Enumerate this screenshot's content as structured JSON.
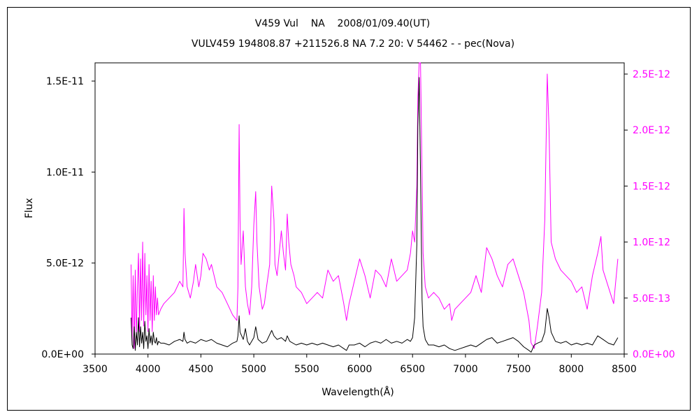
{
  "colors": {
    "primary_series": "#000000",
    "secondary_series": "#ff00ff",
    "frame": "#000000",
    "background": "#ffffff"
  },
  "chart_data": {
    "type": "line",
    "title": "V459 Vul    NA    2008/01/09.40(UT)",
    "subtitle": "VULV459 194808.87 +211526.8 NA 7.2 20: V 54462 - - pec(Nova)",
    "xlabel": "Wavelength(Å)",
    "ylabel": "Flux",
    "y2label": "",
    "xlim": [
      3500,
      8500
    ],
    "ylim": [
      0,
      1.6e-11
    ],
    "y2lim": [
      0,
      2.6e-12
    ],
    "x_ticks": [
      "3500",
      "4000",
      "4500",
      "5000",
      "5500",
      "6000",
      "6500",
      "7000",
      "7500",
      "8000",
      "8500"
    ],
    "y_ticks": [
      "0.0E+00",
      "5.0E-12",
      "1.0E-11",
      "1.5E-11"
    ],
    "y_tick_values": [
      0,
      5e-12,
      1e-11,
      1.5e-11
    ],
    "y2_ticks": [
      "0.0E+00",
      "5.0E-13",
      "1.0E-12",
      "1.5E-12",
      "2.0E-12",
      "2.5E-12"
    ],
    "y2_tick_values": [
      0,
      5e-13,
      1e-12,
      1.5e-12,
      2e-12,
      2.5e-12
    ],
    "grid": false,
    "series": [
      {
        "axis": "left",
        "color": "#000000",
        "x": [
          3840,
          3850,
          3860,
          3870,
          3880,
          3890,
          3900,
          3910,
          3920,
          3930,
          3940,
          3950,
          3960,
          3970,
          3980,
          3990,
          4000,
          4010,
          4020,
          4030,
          4040,
          4050,
          4060,
          4070,
          4080,
          4090,
          4100,
          4120,
          4150,
          4200,
          4250,
          4300,
          4330,
          4340,
          4350,
          4370,
          4400,
          4450,
          4500,
          4550,
          4600,
          4650,
          4700,
          4750,
          4800,
          4840,
          4850,
          4861,
          4870,
          4900,
          4921,
          4940,
          4960,
          5000,
          5018,
          5040,
          5080,
          5120,
          5169,
          5190,
          5220,
          5260,
          5300,
          5316,
          5340,
          5400,
          5450,
          5500,
          5550,
          5600,
          5650,
          5700,
          5750,
          5800,
          5850,
          5876,
          5900,
          5950,
          6000,
          6050,
          6100,
          6150,
          6200,
          6250,
          6300,
          6350,
          6400,
          6450,
          6480,
          6500,
          6520,
          6540,
          6550,
          6563,
          6575,
          6590,
          6600,
          6620,
          6650,
          6700,
          6750,
          6800,
          6850,
          6900,
          6950,
          7000,
          7050,
          7100,
          7150,
          7200,
          7250,
          7300,
          7350,
          7400,
          7450,
          7500,
          7550,
          7600,
          7620,
          7650,
          7680,
          7720,
          7750,
          7773,
          7790,
          7810,
          7850,
          7900,
          7950,
          8000,
          8050,
          8100,
          8150,
          8200,
          8250,
          8300,
          8350,
          8400,
          8440
        ],
        "y": [
          2e-12,
          5e-13,
          3e-13,
          1.5e-12,
          2e-13,
          1.2e-12,
          5e-13,
          2e-12,
          4e-13,
          1.5e-12,
          6e-13,
          1.2e-12,
          3e-13,
          1.8e-12,
          7e-13,
          1e-12,
          3e-13,
          1.4e-12,
          6e-13,
          1e-12,
          5e-13,
          1.2e-12,
          7e-13,
          6e-13,
          9e-13,
          5e-13,
          7e-13,
          6e-13,
          6e-13,
          5e-13,
          7e-13,
          8e-13,
          7e-13,
          1.2e-12,
          8e-13,
          6e-13,
          7e-13,
          6e-13,
          8e-13,
          7e-13,
          8e-13,
          6e-13,
          5e-13,
          4e-13,
          6e-13,
          7e-13,
          1e-12,
          2.1e-12,
          1.2e-12,
          8e-13,
          1.4e-12,
          7e-13,
          5e-13,
          9e-13,
          1.5e-12,
          8e-13,
          6e-13,
          7e-13,
          1.3e-12,
          1e-12,
          8e-13,
          9e-13,
          7e-13,
          1e-12,
          7e-13,
          5e-13,
          6e-13,
          5e-13,
          6e-13,
          5e-13,
          6e-13,
          5e-13,
          4e-13,
          5e-13,
          3e-13,
          2e-13,
          5e-13,
          5e-13,
          6e-13,
          4e-13,
          6e-13,
          7e-13,
          6e-13,
          8e-13,
          6e-13,
          7e-13,
          6e-13,
          8e-13,
          7e-13,
          9e-13,
          2e-12,
          6e-12,
          1.25e-11,
          1.52e-11,
          1e-11,
          3e-12,
          1.5e-12,
          8e-13,
          5e-13,
          5e-13,
          4e-13,
          5e-13,
          3e-13,
          2e-13,
          3e-13,
          4e-13,
          5e-13,
          4e-13,
          6e-13,
          8e-13,
          9e-13,
          6e-13,
          7e-13,
          8e-13,
          9e-13,
          7e-13,
          4e-13,
          2e-13,
          1e-13,
          5e-13,
          6e-13,
          7e-13,
          1.2e-12,
          2.5e-12,
          2e-12,
          1.2e-12,
          7e-13,
          6e-13,
          7e-13,
          5e-13,
          6e-13,
          5e-13,
          6e-13,
          5e-13,
          1e-12,
          8e-13,
          6e-13,
          5e-13,
          9e-13
        ]
      },
      {
        "axis": "right",
        "color": "#ff00ff",
        "x": [
          3840,
          3850,
          3860,
          3870,
          3880,
          3890,
          3900,
          3910,
          3920,
          3930,
          3940,
          3950,
          3960,
          3970,
          3980,
          3990,
          4000,
          4010,
          4020,
          4030,
          4040,
          4050,
          4060,
          4070,
          4080,
          4090,
          4100,
          4120,
          4150,
          4200,
          4250,
          4300,
          4330,
          4340,
          4350,
          4370,
          4400,
          4430,
          4450,
          4480,
          4500,
          4520,
          4550,
          4580,
          4600,
          4650,
          4700,
          4750,
          4800,
          4840,
          4850,
          4861,
          4870,
          4880,
          4900,
          4921,
          4940,
          4960,
          4980,
          5000,
          5018,
          5030,
          5050,
          5080,
          5100,
          5120,
          5150,
          5169,
          5190,
          5200,
          5220,
          5240,
          5260,
          5280,
          5300,
          5316,
          5330,
          5350,
          5380,
          5400,
          5450,
          5500,
          5550,
          5600,
          5650,
          5700,
          5750,
          5800,
          5850,
          5876,
          5900,
          5950,
          6000,
          6050,
          6100,
          6150,
          6200,
          6250,
          6300,
          6350,
          6400,
          6450,
          6480,
          6500,
          6520,
          6540,
          6550,
          6563,
          6575,
          6590,
          6600,
          6620,
          6650,
          6700,
          6750,
          6800,
          6850,
          6870,
          6900,
          6950,
          7000,
          7050,
          7100,
          7150,
          7200,
          7250,
          7300,
          7350,
          7400,
          7450,
          7500,
          7550,
          7600,
          7620,
          7650,
          7680,
          7720,
          7750,
          7773,
          7790,
          7810,
          7850,
          7900,
          7950,
          8000,
          8050,
          8100,
          8150,
          8200,
          8250,
          8280,
          8300,
          8350,
          8400,
          8440
        ],
        "y": [
          8e-13,
          1e-13,
          7e-13,
          5e-14,
          7.5e-13,
          1.5e-13,
          6e-13,
          9e-13,
          2e-13,
          8.5e-13,
          3e-13,
          1e-12,
          2.5e-13,
          9e-13,
          3.5e-13,
          7e-13,
          2e-13,
          8e-13,
          3e-13,
          6.5e-13,
          2e-13,
          7e-13,
          3e-13,
          6e-13,
          3.5e-13,
          5e-13,
          3.5e-13,
          4e-13,
          4.5e-13,
          5e-13,
          5.5e-13,
          6.5e-13,
          6e-13,
          1.3e-12,
          9e-13,
          6e-13,
          5e-13,
          6.5e-13,
          8e-13,
          6e-13,
          7e-13,
          9e-13,
          8.5e-13,
          7.5e-13,
          8e-13,
          6e-13,
          5.5e-13,
          4.5e-13,
          3.5e-13,
          3e-13,
          6e-13,
          2.05e-12,
          1.2e-12,
          8e-13,
          1.1e-12,
          6e-13,
          4.5e-13,
          3.5e-13,
          6e-13,
          1.15e-12,
          1.45e-12,
          1e-12,
          6e-13,
          4e-13,
          4.5e-13,
          6e-13,
          8e-13,
          1.5e-12,
          1.2e-12,
          8e-13,
          7e-13,
          9e-13,
          1.1e-12,
          9e-13,
          7.5e-13,
          1.25e-12,
          1e-12,
          8e-13,
          7e-13,
          6e-13,
          5.5e-13,
          4.5e-13,
          5e-13,
          5.5e-13,
          5e-13,
          7.5e-13,
          6.5e-13,
          7e-13,
          4.5e-13,
          3e-13,
          4.5e-13,
          6.5e-13,
          8.5e-13,
          7e-13,
          5e-13,
          7.5e-13,
          7e-13,
          6e-13,
          8.5e-13,
          6.5e-13,
          7e-13,
          7.5e-13,
          9e-13,
          1.1e-12,
          1e-12,
          1.5e-12,
          2.3e-12,
          2.8e-12,
          2.6e-12,
          1.6e-12,
          9e-13,
          6e-13,
          5e-13,
          5.5e-13,
          5e-13,
          4e-13,
          4.5e-13,
          3e-13,
          4e-13,
          4.5e-13,
          5e-13,
          5.5e-13,
          7e-13,
          5.5e-13,
          9.5e-13,
          8.5e-13,
          7e-13,
          6e-13,
          8e-13,
          8.5e-13,
          7e-13,
          5.5e-13,
          3e-13,
          1e-13,
          5e-14,
          2.5e-13,
          5.5e-13,
          1.2e-12,
          2.5e-12,
          2e-12,
          1e-12,
          8.5e-13,
          7.5e-13,
          7e-13,
          6.5e-13,
          5.5e-13,
          6e-13,
          4e-13,
          7e-13,
          9e-13,
          1.05e-12,
          7.5e-13,
          6e-13,
          4.5e-13,
          8.5e-13
        ]
      }
    ]
  }
}
